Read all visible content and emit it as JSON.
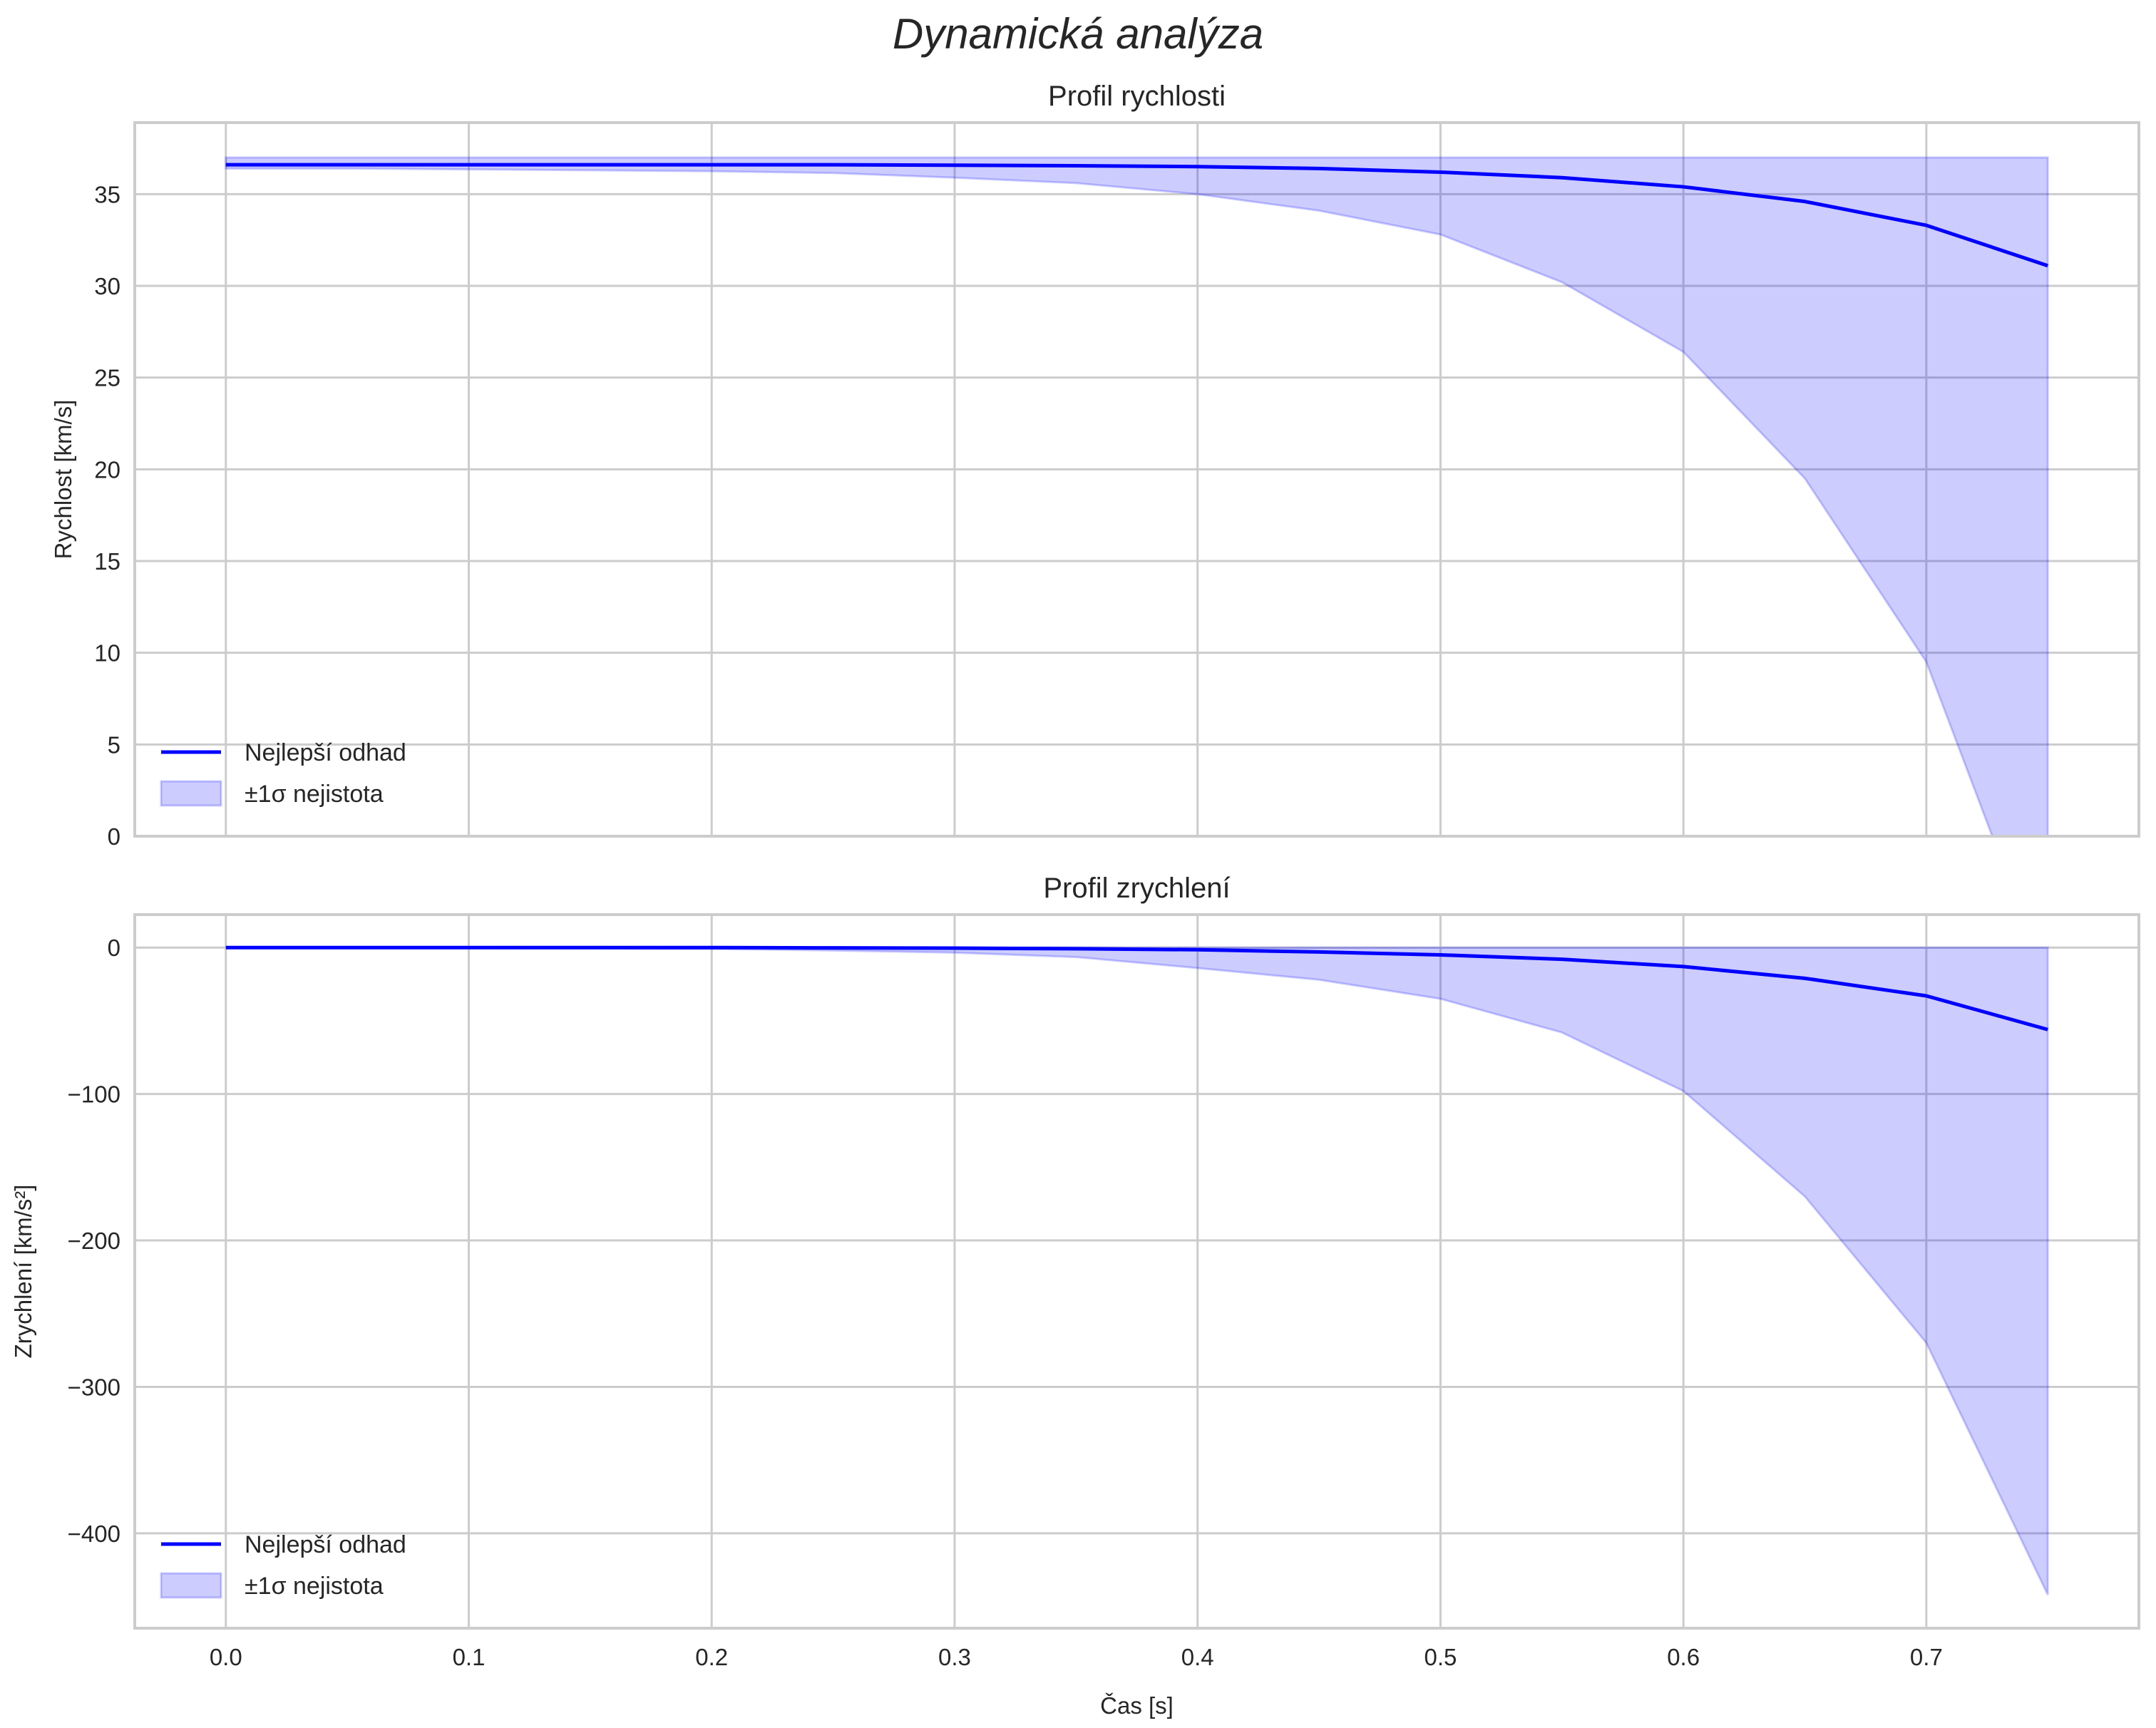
{
  "chart_data": [
    {
      "type": "line",
      "title": "Profil rychlosti",
      "xlabel": "",
      "ylabel": "Rychlost [km/s]",
      "xlim": [
        -0.0375,
        0.7875
      ],
      "ylim": [
        0,
        38.9
      ],
      "xticks": [
        "0.0",
        "0.1",
        "0.2",
        "0.3",
        "0.4",
        "0.5",
        "0.6",
        "0.7"
      ],
      "xtick_values": [
        0,
        0.1,
        0.2,
        0.3,
        0.4,
        0.5,
        0.6,
        0.7
      ],
      "show_xtick_labels": false,
      "yticks": [
        "0",
        "5",
        "10",
        "15",
        "20",
        "25",
        "30",
        "35"
      ],
      "ytick_values": [
        0,
        5,
        10,
        15,
        20,
        25,
        30,
        35
      ],
      "grid": true,
      "legend": {
        "placement": "lower-left",
        "entries": [
          "Nejlepší odhad",
          "±1σ nejistota"
        ]
      },
      "x": [
        0,
        0.05,
        0.1,
        0.15,
        0.2,
        0.25,
        0.3,
        0.35,
        0.4,
        0.45,
        0.5,
        0.55,
        0.6,
        0.65,
        0.7,
        0.75
      ],
      "series": [
        {
          "name": "Nejlepší odhad",
          "kind": "line",
          "color": "#0000ff",
          "values": [
            36.6,
            36.6,
            36.6,
            36.6,
            36.6,
            36.6,
            36.58,
            36.55,
            36.5,
            36.4,
            36.2,
            35.9,
            35.4,
            34.6,
            33.3,
            31.1
          ]
        },
        {
          "name": "±1σ nejistota",
          "kind": "band",
          "color": "#0000ff",
          "lower": [
            36.4,
            36.4,
            36.35,
            36.3,
            36.25,
            36.15,
            35.9,
            35.6,
            35.0,
            34.1,
            32.8,
            30.2,
            26.4,
            19.5,
            9.5,
            -8
          ],
          "upper": [
            37,
            37,
            37,
            37,
            37,
            37,
            37,
            37,
            37,
            37,
            37,
            37,
            37,
            37,
            37,
            37
          ]
        }
      ]
    },
    {
      "type": "line",
      "title": "Profil zrychlení",
      "xlabel": "Čas [s]",
      "ylabel": "Zrychlení [km/s²]",
      "xlim": [
        -0.0375,
        0.7875
      ],
      "ylim": [
        -464.8,
        22.5
      ],
      "xticks": [
        "0.0",
        "0.1",
        "0.2",
        "0.3",
        "0.4",
        "0.5",
        "0.6",
        "0.7"
      ],
      "xtick_values": [
        0,
        0.1,
        0.2,
        0.3,
        0.4,
        0.5,
        0.6,
        0.7
      ],
      "show_xtick_labels": true,
      "yticks": [
        "−400",
        "−300",
        "−200",
        "−100",
        "0"
      ],
      "ytick_values": [
        -400,
        -300,
        -200,
        -100,
        0
      ],
      "grid": true,
      "legend": {
        "placement": "lower-left",
        "entries": [
          "Nejlepší odhad",
          "±1σ nejistota"
        ]
      },
      "x": [
        0,
        0.05,
        0.1,
        0.15,
        0.2,
        0.25,
        0.3,
        0.35,
        0.4,
        0.45,
        0.5,
        0.55,
        0.6,
        0.65,
        0.7,
        0.75
      ],
      "series": [
        {
          "name": "Nejlepší odhad",
          "kind": "line",
          "color": "#0000ff",
          "values": [
            0,
            0,
            0,
            0,
            0,
            -0.2,
            -0.4,
            -0.8,
            -1.5,
            -3,
            -5,
            -8,
            -13,
            -21,
            -33,
            -56
          ]
        },
        {
          "name": "±1σ nejistota",
          "kind": "band",
          "color": "#0000ff",
          "lower": [
            0,
            -0.1,
            -0.3,
            -0.6,
            -1,
            -2,
            -3.5,
            -6.5,
            -14,
            -22,
            -35,
            -58,
            -98,
            -170,
            -270,
            -442
          ],
          "upper": [
            0,
            0,
            0,
            0,
            0,
            0,
            0,
            0,
            0,
            0,
            0,
            0,
            0,
            0,
            0,
            0
          ]
        }
      ]
    }
  ],
  "figure": {
    "title": "Dynamická analýza"
  }
}
